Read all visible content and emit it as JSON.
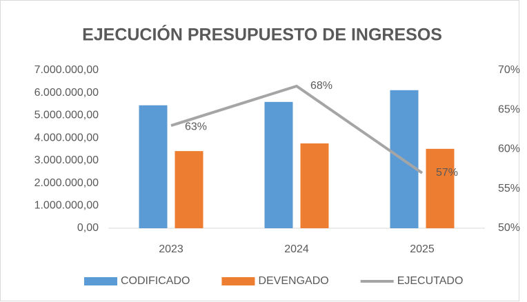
{
  "chart_data": {
    "type": "bar",
    "title": "EJECUCIÓN PRESUPUESTO DE INGRESOS",
    "categories": [
      "2023",
      "2024",
      "2025"
    ],
    "series": [
      {
        "name": "CODIFICADO",
        "color": "#5b9bd5",
        "values": [
          5450000,
          5600000,
          6120000
        ]
      },
      {
        "name": "DEVENGADO",
        "color": "#ed7d31",
        "values": [
          3420000,
          3760000,
          3520000
        ]
      },
      {
        "name": "EJECUTADO",
        "color": "#a5a5a5",
        "type": "line",
        "axis": "y2",
        "values": [
          63,
          68,
          57
        ],
        "value_labels": [
          "63%",
          "68%",
          "57%"
        ]
      }
    ],
    "ylim": [
      0,
      7000000
    ],
    "yticks": [
      {
        "value": 0,
        "label": "0,00"
      },
      {
        "value": 1000000,
        "label": "1.000.000,00"
      },
      {
        "value": 2000000,
        "label": "2.000.000,00"
      },
      {
        "value": 3000000,
        "label": "3.000.000,00"
      },
      {
        "value": 4000000,
        "label": "4.000.000,00"
      },
      {
        "value": 5000000,
        "label": "5.000.000,00"
      },
      {
        "value": 6000000,
        "label": "6.000.000,00"
      },
      {
        "value": 7000000,
        "label": "7.000.000,00"
      }
    ],
    "y2lim": [
      50,
      70
    ],
    "y2ticks": [
      {
        "value": 50,
        "label": "50%"
      },
      {
        "value": 55,
        "label": "55%"
      },
      {
        "value": 60,
        "label": "60%"
      },
      {
        "value": 65,
        "label": "65%"
      },
      {
        "value": 70,
        "label": "70%"
      }
    ],
    "grid": false,
    "legend": "bottom"
  }
}
